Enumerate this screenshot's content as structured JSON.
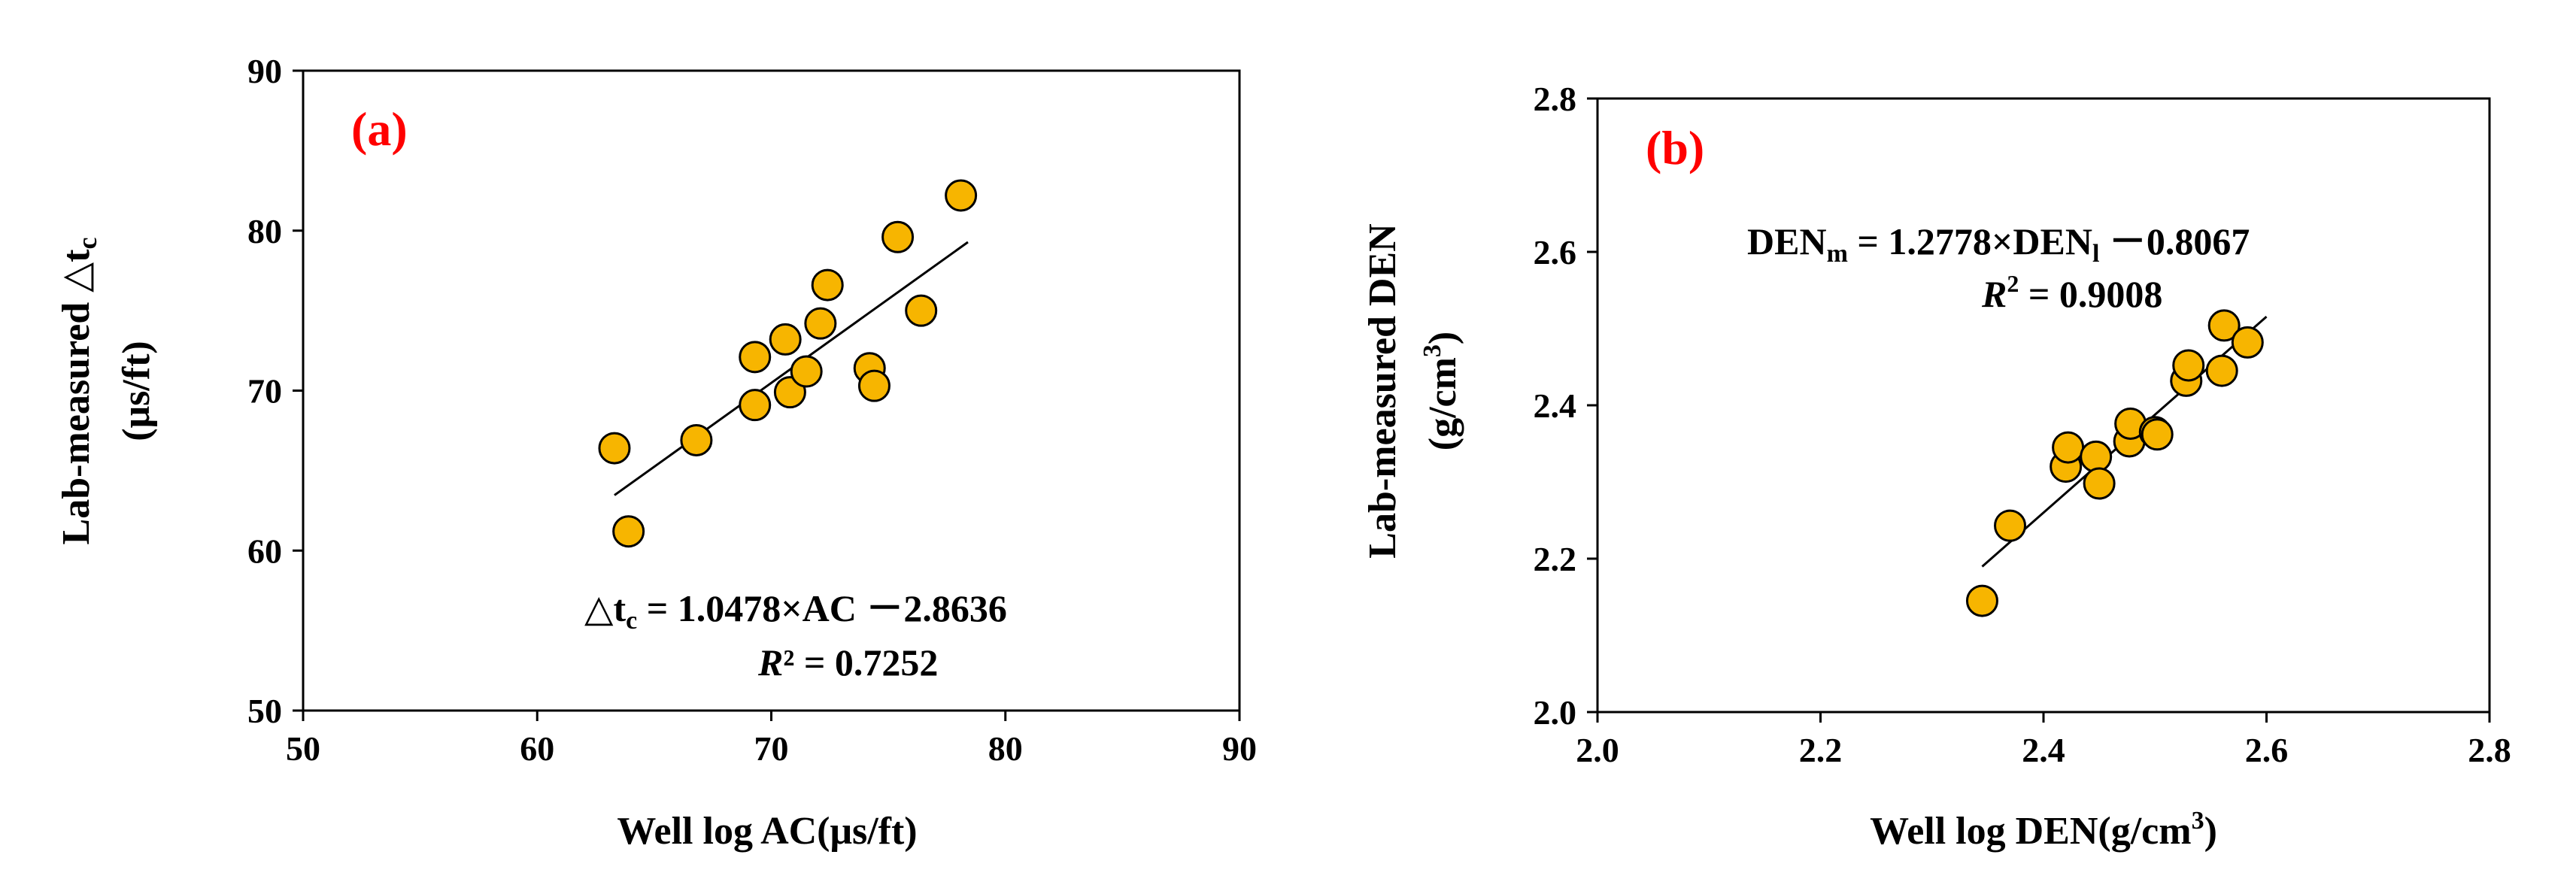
{
  "chart_data": [
    {
      "type": "scatter",
      "panel_label": "(a)",
      "xlabel": "Well log AC(μs/ft)",
      "ylabel_line1_prefix": "Lab-measured △t",
      "ylabel_line1_sub": "c",
      "ylabel_line2": "(μs/ft)",
      "xlim": [
        50,
        90
      ],
      "ylim": [
        50,
        90
      ],
      "xticks": [
        50,
        60,
        70,
        80,
        90
      ],
      "yticks": [
        50,
        60,
        70,
        80,
        90
      ],
      "xtick_labels": [
        "50",
        "60",
        "70",
        "80",
        "90"
      ],
      "ytick_labels": [
        "50",
        "60",
        "70",
        "80",
        "90"
      ],
      "points_x": [
        63.3,
        63.9,
        66.8,
        69.3,
        69.3,
        70.6,
        70.8,
        71.5,
        72.1,
        72.4,
        74.2,
        74.4,
        75.4,
        76.4,
        78.1
      ],
      "points_y": [
        66.4,
        61.2,
        66.9,
        72.1,
        69.1,
        73.2,
        69.9,
        71.2,
        74.2,
        76.6,
        71.4,
        70.3,
        79.6,
        75.0,
        82.2
      ],
      "fit": {
        "slope": 1.0478,
        "intercept": -2.8636,
        "x_range": [
          63.3,
          78.4
        ]
      },
      "equation_lhs": "△t",
      "equation_lhs_sub": "c",
      "equation_rhs": " = 1.0478×AC －2.8636",
      "r2_symbol": "R",
      "r2_exp": "²",
      "r2_value": " = 0.7252"
    },
    {
      "type": "scatter",
      "panel_label": "(b)",
      "xlabel_prefix": "Well log DEN(g/cm",
      "xlabel_exp": "3",
      "xlabel_suffix": ")",
      "ylabel_line1": "Lab-measured DEN",
      "ylabel_line2_prefix": "(g/cm",
      "ylabel_line2_exp": "3",
      "ylabel_line2_suffix": ")",
      "xlim": [
        2.0,
        2.8
      ],
      "ylim": [
        2.0,
        2.8
      ],
      "xticks": [
        2.0,
        2.2,
        2.4,
        2.6,
        2.8
      ],
      "yticks": [
        2.0,
        2.2,
        2.4,
        2.6,
        2.8
      ],
      "xtick_labels": [
        "2.0",
        "2.2",
        "2.4",
        "2.6",
        "2.8"
      ],
      "ytick_labels": [
        "2.0",
        "2.2",
        "2.4",
        "2.6",
        "2.8"
      ],
      "points_x": [
        2.345,
        2.37,
        2.42,
        2.422,
        2.447,
        2.45,
        2.477,
        2.478,
        2.5,
        2.502,
        2.528,
        2.53,
        2.56,
        2.562,
        2.583
      ],
      "points_y": [
        2.145,
        2.243,
        2.32,
        2.345,
        2.333,
        2.298,
        2.353,
        2.376,
        2.365,
        2.362,
        2.432,
        2.452,
        2.445,
        2.504,
        2.482
      ],
      "fit": {
        "slope": 1.2778,
        "intercept": -0.8067,
        "x_range": [
          2.345,
          2.6
        ]
      },
      "equation_lhs": "DEN",
      "equation_lhs_sub": "m",
      "equation_mid": " = 1.2778×DEN",
      "equation_mid_sub": "l",
      "equation_rhs": " －0.8067",
      "r2_symbol": "R",
      "r2_exp": "2",
      "r2_value": " = 0.9008"
    }
  ],
  "colors": {
    "marker_fill": "#F7B500",
    "marker_edge": "#000000",
    "panel_label": "#FF0000",
    "fit_line": "#000000"
  }
}
